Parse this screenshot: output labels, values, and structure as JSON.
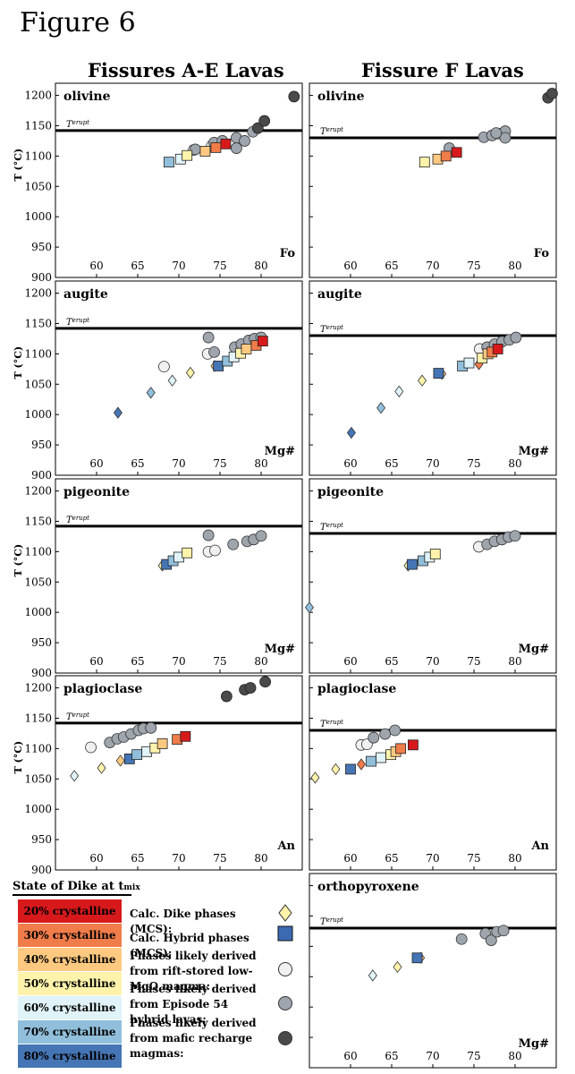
{
  "figure_title": "Figure 6",
  "column_titles": [
    "Fissures A-E Lavas",
    "Fissure F Lavas"
  ],
  "terupt_label": "T",
  "terupt_sup": "erupt",
  "y_axis_label": "T (°C)",
  "y_ticks": [
    900,
    950,
    1000,
    1050,
    1100,
    1150,
    1200
  ],
  "x_ticks": [
    60,
    65,
    70,
    75,
    80
  ],
  "legend": {
    "caption": "State of Dike at t",
    "caption_sub": "mix",
    "scale": [
      {
        "label": "20% crystalline",
        "color": "#d7191c"
      },
      {
        "label": "30% crystalline",
        "color": "#f07c4a"
      },
      {
        "label": "40% crystalline",
        "color": "#fdc980"
      },
      {
        "label": "50% crystalline",
        "color": "#fff3ab"
      },
      {
        "label": "60% crystalline",
        "color": "#e0f3f8"
      },
      {
        "label": "70% crystalline",
        "color": "#91bfdb"
      },
      {
        "label": "80% crystalline",
        "color": "#4575b4"
      }
    ],
    "items": [
      {
        "label": "Calc. Dike phases (MCS):",
        "marker": "diamond-yellow"
      },
      {
        "label": "Calc. Hybrid phases (MCS):",
        "marker": "square-blue"
      },
      {
        "label": "Phases likely derived from rift-stored low-MgO magma:",
        "marker": "circle-white"
      },
      {
        "label": "Phases likely derived from Episode 54 hybrid lavas:",
        "marker": "circle-gray"
      },
      {
        "label": "Phases likely derived from mafic recharge magmas:",
        "marker": "circle-dark"
      }
    ]
  },
  "colors": {
    "white_circle": "#f0f0f0",
    "gray_circle": "#9ea5ad",
    "dark_circle": "#4a4a4a"
  },
  "chart_data": [
    {
      "type": "scatter",
      "panel": "A-E",
      "mineral": "olivine",
      "x_var": "Fo",
      "terupt": 1142,
      "xlim": [
        55,
        85
      ],
      "ylim": [
        900,
        1220
      ],
      "squares": [
        [
          68.8,
          1090,
          "#91bfdb"
        ],
        [
          70.2,
          1095,
          "#e0f3f8"
        ],
        [
          71.0,
          1101,
          "#fff3ab"
        ],
        [
          73.2,
          1108,
          "#fdc980"
        ],
        [
          74.5,
          1114,
          "#f07c4a"
        ],
        [
          75.7,
          1120,
          "#d7191c"
        ]
      ],
      "diamonds": [],
      "white": [
        [
          71.8,
          1110
        ],
        [
          74.0,
          1117
        ]
      ],
      "gray": [
        [
          72.0,
          1111
        ],
        [
          74.3,
          1122
        ],
        [
          75.3,
          1125
        ],
        [
          77.0,
          1130
        ],
        [
          77.0,
          1113
        ],
        [
          78.0,
          1125
        ],
        [
          79.0,
          1140
        ]
      ],
      "dark": [
        [
          79.6,
          1146
        ],
        [
          80.4,
          1158
        ],
        [
          84.0,
          1198
        ]
      ]
    },
    {
      "type": "scatter",
      "panel": "F",
      "mineral": "olivine",
      "x_var": "Fo",
      "terupt": 1130,
      "xlim": [
        55,
        85
      ],
      "ylim": [
        900,
        1220
      ],
      "squares": [
        [
          69.0,
          1090,
          "#fff3ab"
        ],
        [
          70.6,
          1095,
          "#fdc980"
        ],
        [
          71.6,
          1100,
          "#f07c4a"
        ],
        [
          72.9,
          1106,
          "#d7191c"
        ]
      ],
      "diamonds": [],
      "white": [],
      "gray": [
        [
          72.0,
          1113
        ],
        [
          76.2,
          1131
        ],
        [
          77.2,
          1134
        ],
        [
          78.0,
          1137
        ],
        [
          78.8,
          1141
        ],
        [
          78.8,
          1130
        ],
        [
          77.7,
          1138
        ]
      ],
      "dark": [
        [
          84.0,
          1196
        ],
        [
          84.5,
          1203
        ]
      ]
    },
    {
      "type": "scatter",
      "panel": "A-E",
      "mineral": "augite",
      "x_var": "Mg#",
      "terupt": 1142,
      "xlim": [
        55,
        85
      ],
      "ylim": [
        900,
        1220
      ],
      "squares": [
        [
          74.8,
          1080,
          "#4575b4"
        ],
        [
          75.9,
          1088,
          "#91bfdb"
        ],
        [
          76.7,
          1095,
          "#e0f3f8"
        ],
        [
          77.5,
          1101,
          "#fff3ab"
        ],
        [
          78.2,
          1108,
          "#fdc980"
        ],
        [
          79.4,
          1114,
          "#f07c4a"
        ],
        [
          80.2,
          1121,
          "#d7191c"
        ]
      ],
      "diamonds": [
        [
          62.6,
          1003,
          "#4575b4"
        ],
        [
          66.6,
          1036,
          "#91bfdb"
        ],
        [
          69.2,
          1056,
          "#e0f3f8"
        ],
        [
          71.4,
          1069,
          "#fff3ab"
        ],
        [
          74.4,
          1080,
          "#fdc980"
        ]
      ],
      "white": [
        [
          68.2,
          1079
        ],
        [
          73.5,
          1100
        ]
      ],
      "gray": [
        [
          73.6,
          1127
        ],
        [
          74.3,
          1103
        ],
        [
          76.8,
          1111
        ],
        [
          77.6,
          1116
        ],
        [
          78.5,
          1122
        ],
        [
          79.2,
          1125
        ],
        [
          80.0,
          1127
        ]
      ],
      "dark": []
    },
    {
      "type": "scatter",
      "panel": "F",
      "mineral": "augite",
      "x_var": "Mg#",
      "terupt": 1130,
      "xlim": [
        55,
        85
      ],
      "ylim": [
        900,
        1220
      ],
      "squares": [
        [
          70.7,
          1068,
          "#4575b4"
        ],
        [
          73.6,
          1080,
          "#91bfdb"
        ],
        [
          74.4,
          1085,
          "#e0f3f8"
        ],
        [
          76.0,
          1093,
          "#fff3ab"
        ],
        [
          76.7,
          1100,
          "#fdc980"
        ],
        [
          77.2,
          1103,
          "#f07c4a"
        ],
        [
          77.9,
          1108,
          "#d7191c"
        ]
      ],
      "diamonds": [
        [
          60.1,
          970,
          "#4575b4"
        ],
        [
          63.7,
          1011,
          "#91bfdb"
        ],
        [
          65.9,
          1038,
          "#e0f3f8"
        ],
        [
          68.7,
          1056,
          "#fff3ab"
        ],
        [
          71.1,
          1067,
          "#fdc980"
        ],
        [
          75.6,
          1083,
          "#f07c4a"
        ]
      ],
      "white": [
        [
          75.7,
          1108
        ]
      ],
      "gray": [
        [
          76.6,
          1111
        ],
        [
          77.5,
          1116
        ],
        [
          78.4,
          1120
        ],
        [
          79.3,
          1123
        ],
        [
          80.1,
          1127
        ]
      ],
      "dark": []
    },
    {
      "type": "scatter",
      "panel": "A-E",
      "mineral": "pigeonite",
      "x_var": "Mg#",
      "terupt": 1142,
      "xlim": [
        55,
        85
      ],
      "ylim": [
        900,
        1220
      ],
      "squares": [
        [
          68.5,
          1079,
          "#4575b4"
        ],
        [
          69.3,
          1085,
          "#91bfdb"
        ],
        [
          70.0,
          1091,
          "#e0f3f8"
        ],
        [
          71.0,
          1098,
          "#fff3ab"
        ]
      ],
      "diamonds": [
        [
          68.0,
          1077,
          "#fff3ab"
        ]
      ],
      "white": [
        [
          73.6,
          1100
        ],
        [
          74.4,
          1102
        ]
      ],
      "gray": [
        [
          73.6,
          1127
        ],
        [
          76.6,
          1112
        ],
        [
          78.3,
          1117
        ],
        [
          79.1,
          1120
        ],
        [
          80.0,
          1126
        ]
      ],
      "dark": []
    },
    {
      "type": "scatter",
      "panel": "F",
      "mineral": "pigeonite",
      "x_var": "Mg#",
      "terupt": 1130,
      "xlim": [
        55,
        85
      ],
      "ylim": [
        900,
        1220
      ],
      "squares": [
        [
          67.5,
          1079,
          "#4575b4"
        ],
        [
          68.8,
          1085,
          "#91bfdb"
        ],
        [
          69.6,
          1091,
          "#e0f3f8"
        ],
        [
          70.3,
          1096,
          "#fff3ab"
        ]
      ],
      "diamonds": [
        [
          55.0,
          1008,
          "#91bfdb"
        ],
        [
          67.0,
          1077,
          "#fff3ab"
        ]
      ],
      "white": [
        [
          75.6,
          1108
        ]
      ],
      "gray": [
        [
          76.6,
          1112
        ],
        [
          77.5,
          1117
        ],
        [
          78.4,
          1120
        ],
        [
          79.2,
          1124
        ],
        [
          80.0,
          1126
        ]
      ],
      "dark": []
    },
    {
      "type": "scatter",
      "panel": "A-E",
      "mineral": "plagioclase",
      "x_var": "An",
      "terupt": 1142,
      "xlim": [
        55,
        85
      ],
      "ylim": [
        900,
        1220
      ],
      "squares": [
        [
          64.0,
          1083,
          "#4575b4"
        ],
        [
          64.9,
          1090,
          "#91bfdb"
        ],
        [
          66.1,
          1095,
          "#e0f3f8"
        ],
        [
          67.1,
          1101,
          "#fff3ab"
        ],
        [
          68.0,
          1108,
          "#fdc980"
        ],
        [
          69.8,
          1115,
          "#f07c4a"
        ],
        [
          70.8,
          1120,
          "#d7191c"
        ]
      ],
      "diamonds": [
        [
          57.3,
          1055,
          "#e0f3f8"
        ],
        [
          60.6,
          1068,
          "#fff3ab"
        ],
        [
          62.9,
          1080,
          "#fdc980"
        ]
      ],
      "white": [
        [
          59.3,
          1102
        ]
      ],
      "gray": [
        [
          61.6,
          1110
        ],
        [
          62.5,
          1116
        ],
        [
          63.3,
          1119
        ],
        [
          64.2,
          1124
        ],
        [
          65.1,
          1130
        ],
        [
          65.7,
          1133
        ],
        [
          66.6,
          1134
        ]
      ],
      "dark": [
        [
          75.8,
          1186
        ],
        [
          78.0,
          1197
        ],
        [
          78.7,
          1200
        ],
        [
          80.5,
          1210
        ]
      ]
    },
    {
      "type": "scatter",
      "panel": "F",
      "mineral": "plagioclase",
      "x_var": "An",
      "terupt": 1130,
      "xlim": [
        55,
        85
      ],
      "ylim": [
        900,
        1220
      ],
      "squares": [
        [
          60.0,
          1066,
          "#4575b4"
        ],
        [
          62.5,
          1079,
          "#91bfdb"
        ],
        [
          63.7,
          1085,
          "#e0f3f8"
        ],
        [
          64.9,
          1090,
          "#fff3ab"
        ],
        [
          65.5,
          1095,
          "#fdc980"
        ],
        [
          66.1,
          1100,
          "#f07c4a"
        ],
        [
          67.6,
          1106,
          "#d7191c"
        ]
      ],
      "diamonds": [
        [
          55.7,
          1052,
          "#fff3ab"
        ],
        [
          58.2,
          1066,
          "#fff3ab"
        ],
        [
          61.3,
          1074,
          "#f07c4a"
        ]
      ],
      "white": [
        [
          61.3,
          1106
        ],
        [
          62.0,
          1107
        ]
      ],
      "gray": [
        [
          62.8,
          1118
        ],
        [
          64.2,
          1124
        ],
        [
          65.4,
          1130
        ]
      ],
      "dark": []
    },
    {
      "type": "scatter",
      "panel": "F",
      "mineral": "orthopyroxene",
      "x_var": "Mg#",
      "terupt": 1130,
      "xlim": [
        55,
        85
      ],
      "ylim": [
        900,
        1220
      ],
      "squares": [
        [
          68.1,
          1081,
          "#4575b4"
        ]
      ],
      "diamonds": [
        [
          62.7,
          1052,
          "#e0f3f8"
        ],
        [
          65.7,
          1066,
          "#fff3ab"
        ],
        [
          68.5,
          1081,
          "#fdc980"
        ]
      ],
      "white": [],
      "gray": [
        [
          73.5,
          1112
        ],
        [
          76.4,
          1121
        ],
        [
          77.1,
          1110
        ],
        [
          77.8,
          1124
        ],
        [
          78.6,
          1126
        ]
      ],
      "dark": []
    }
  ]
}
